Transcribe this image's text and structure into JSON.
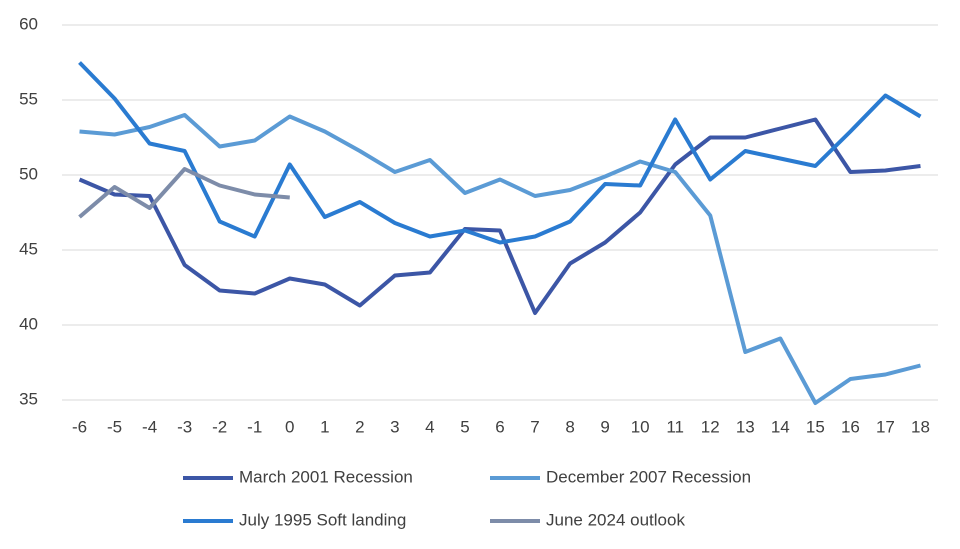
{
  "chart_data": {
    "type": "line",
    "x": [
      -6,
      -5,
      -4,
      -3,
      -2,
      -1,
      0,
      1,
      2,
      3,
      4,
      5,
      6,
      7,
      8,
      9,
      10,
      11,
      12,
      13,
      14,
      15,
      16,
      17,
      18
    ],
    "xlim": [
      -6.5,
      18.5
    ],
    "xticks": [
      -6,
      -5,
      -4,
      -3,
      -2,
      -1,
      0,
      1,
      2,
      3,
      4,
      5,
      6,
      7,
      8,
      9,
      10,
      11,
      12,
      13,
      14,
      15,
      16,
      17,
      18
    ],
    "ylim": [
      35,
      60
    ],
    "yticks": [
      35,
      40,
      45,
      50,
      55,
      60
    ],
    "grid": true,
    "legend": "bottom",
    "series": [
      {
        "name": "March 2001 Recession",
        "color": "#3c56a6",
        "values": [
          49.7,
          48.7,
          48.6,
          44.0,
          42.3,
          42.1,
          43.1,
          42.7,
          41.3,
          43.3,
          43.5,
          46.4,
          46.3,
          40.8,
          44.1,
          45.5,
          47.5,
          50.7,
          52.5,
          52.5,
          53.1,
          53.7,
          50.2,
          50.3,
          50.6
        ]
      },
      {
        "name": "December 2007 Recession",
        "color": "#5b9bd5",
        "values": [
          52.9,
          52.7,
          53.2,
          54.0,
          51.9,
          52.3,
          53.9,
          52.9,
          51.6,
          50.2,
          51.0,
          48.8,
          49.7,
          48.6,
          49.0,
          49.9,
          50.9,
          50.2,
          47.3,
          38.2,
          39.1,
          34.8,
          36.4,
          36.7,
          37.3
        ]
      },
      {
        "name": "July 1995 Soft landing",
        "color": "#2a7bd1",
        "values": [
          57.5,
          55.1,
          52.1,
          51.6,
          46.9,
          45.9,
          50.7,
          47.2,
          48.2,
          46.8,
          45.9,
          46.3,
          45.5,
          45.9,
          46.9,
          49.4,
          49.3,
          53.7,
          49.7,
          51.6,
          51.1,
          50.6,
          52.9,
          55.3,
          53.9
        ]
      },
      {
        "name": "June 2024 outlook",
        "color": "#7d8ca9",
        "values": [
          47.2,
          49.2,
          47.8,
          50.4,
          49.3,
          48.7,
          48.5,
          null,
          null,
          null,
          null,
          null,
          null,
          null,
          null,
          null,
          null,
          null,
          null,
          null,
          null,
          null,
          null,
          null,
          null
        ]
      }
    ]
  }
}
